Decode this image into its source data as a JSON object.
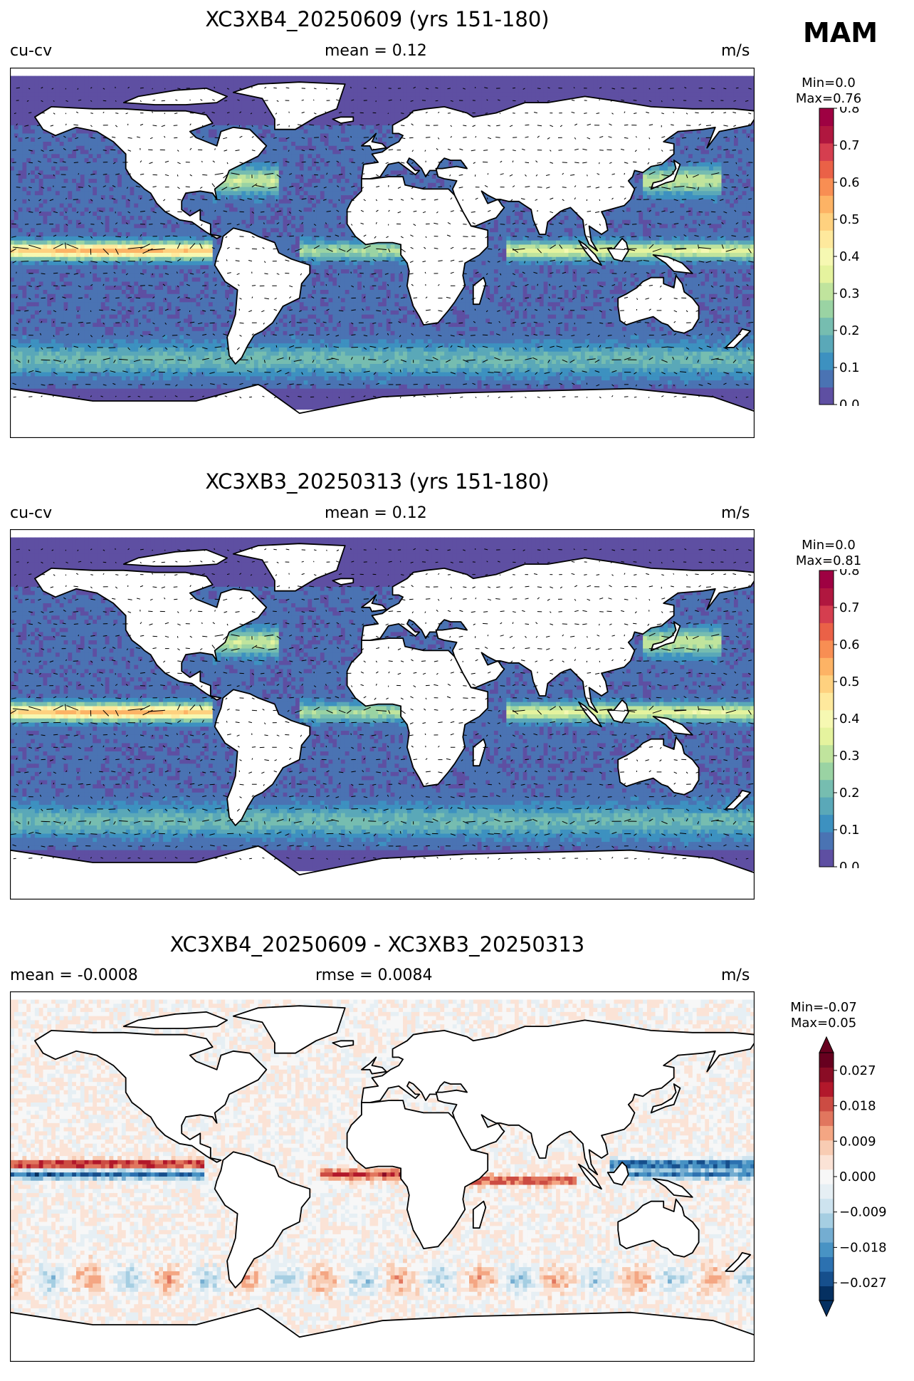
{
  "season": "MAM",
  "ocean_colors": [
    "#5e4fa2",
    "#4a73b3",
    "#3d91c0",
    "#5aa8b8",
    "#76bdb0",
    "#9ad3a3",
    "#c0e49d",
    "#e5f39e",
    "#f6f8b2",
    "#fee99d",
    "#fed17f",
    "#fdb365",
    "#f88e53",
    "#ea6147",
    "#d53e4f",
    "#b0173f",
    "#9e0142"
  ],
  "diff_colors": [
    "#053061",
    "#164f8c",
    "#2c71b0",
    "#4893c4",
    "#74add1",
    "#a5cee2",
    "#cde3ef",
    "#e6eff4",
    "#f7f7f7",
    "#fbe3d6",
    "#f8ccb3",
    "#f4a683",
    "#e1765e",
    "#cc4c43",
    "#b2182b",
    "#8a0c25",
    "#67001f"
  ],
  "land_color": "#ffffff",
  "chart_data": [
    {
      "type": "heatmap",
      "title": "XC3XB4_20250609 (yrs 151-180)",
      "left_label": "cu-cv",
      "center_label": "mean = 0.12",
      "units": "m/s",
      "min_label": "Min=0.0",
      "max_label": "Max=0.76",
      "colorbar": {
        "range": [
          0.0,
          0.8
        ],
        "ticks": [
          "0.0",
          "0.1",
          "0.2",
          "0.3",
          "0.4",
          "0.5",
          "0.6",
          "0.7",
          "0.8"
        ],
        "cmap": "Spectral_r",
        "extend": "neither"
      }
    },
    {
      "type": "heatmap",
      "title": "XC3XB3_20250313 (yrs 151-180)",
      "left_label": "cu-cv",
      "center_label": "mean = 0.12",
      "units": "m/s",
      "min_label": "Min=0.0",
      "max_label": "Max=0.81",
      "colorbar": {
        "range": [
          0.0,
          0.8
        ],
        "ticks": [
          "0.0",
          "0.1",
          "0.2",
          "0.3",
          "0.4",
          "0.5",
          "0.6",
          "0.7",
          "0.8"
        ],
        "cmap": "Spectral_r",
        "extend": "neither"
      }
    },
    {
      "type": "heatmap",
      "title": "XC3XB4_20250609 - XC3XB3_20250313",
      "left_label": "mean = -0.0008",
      "center_label": "rmse = 0.0084",
      "units": "m/s",
      "min_label": "Min=-0.07",
      "max_label": "Max=0.05",
      "colorbar": {
        "range": [
          -0.0315,
          0.0315
        ],
        "ticks": [
          "−0.027",
          "−0.018",
          "−0.009",
          "0.000",
          "0.009",
          "0.018",
          "0.027"
        ],
        "tick_values": [
          -0.027,
          -0.018,
          -0.009,
          0,
          0.009,
          0.018,
          0.027
        ],
        "cmap": "RdBu_r",
        "extend": "both"
      }
    }
  ]
}
